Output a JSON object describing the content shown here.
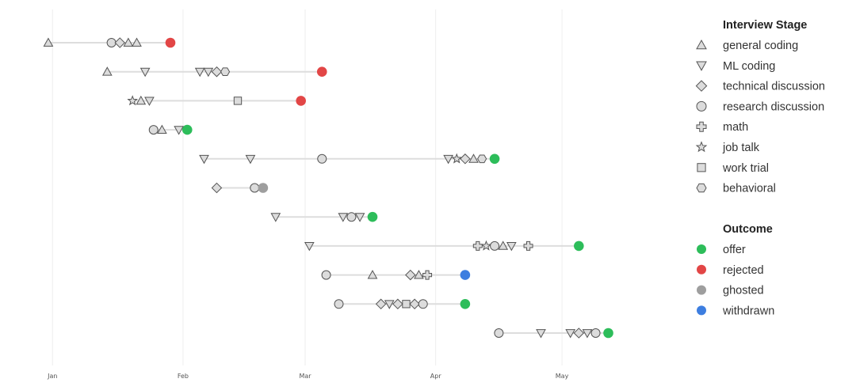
{
  "chart_data": {
    "type": "timeline",
    "x_axis": {
      "type": "date",
      "range": [
        "2023-12-28",
        "2024-05-20"
      ],
      "tick_labels": [
        "Jan",
        "Feb",
        "Mar",
        "Apr",
        "May"
      ],
      "tick_dates": [
        "2024-01-01",
        "2024-02-01",
        "2024-03-01",
        "2024-04-01",
        "2024-05-01"
      ],
      "grid": true
    },
    "legend_position": "right",
    "stage_legend": {
      "title": "Interview Stage",
      "items": [
        {
          "key": "general_coding",
          "label": "general coding",
          "marker": "triangle-up"
        },
        {
          "key": "ml_coding",
          "label": "ML coding",
          "marker": "triangle-down"
        },
        {
          "key": "technical_discussion",
          "label": "technical discussion",
          "marker": "diamond"
        },
        {
          "key": "research_discussion",
          "label": "research discussion",
          "marker": "circle"
        },
        {
          "key": "math",
          "label": "math",
          "marker": "plus"
        },
        {
          "key": "job_talk",
          "label": "job talk",
          "marker": "star"
        },
        {
          "key": "work_trial",
          "label": "work trial",
          "marker": "square"
        },
        {
          "key": "behavioral",
          "label": "behavioral",
          "marker": "hexagon"
        }
      ]
    },
    "outcome_legend": {
      "title": "Outcome",
      "items": [
        {
          "key": "offer",
          "label": "offer",
          "color": "#2dbd5a"
        },
        {
          "key": "rejected",
          "label": "rejected",
          "color": "#e24646"
        },
        {
          "key": "ghosted",
          "label": "ghosted",
          "color": "#9e9e9e"
        },
        {
          "key": "withdrawn",
          "label": "withdrawn",
          "color": "#3d7ee0"
        }
      ]
    },
    "colors": {
      "marker_fill": "#dcdcdc",
      "marker_stroke": "#555555",
      "line": "#dddddd",
      "grid": "#eeeeee"
    },
    "rows": [
      {
        "stages": [
          [
            "2023-12-31",
            "general_coding"
          ],
          [
            "2024-01-15",
            "research_discussion"
          ],
          [
            "2024-01-17",
            "technical_discussion"
          ],
          [
            "2024-01-19",
            "general_coding"
          ],
          [
            "2024-01-21",
            "general_coding"
          ]
        ],
        "outcome": [
          "2024-01-29",
          "rejected"
        ]
      },
      {
        "stages": [
          [
            "2024-01-14",
            "general_coding"
          ],
          [
            "2024-01-23",
            "ml_coding"
          ],
          [
            "2024-02-05",
            "ml_coding"
          ],
          [
            "2024-02-07",
            "ml_coding"
          ],
          [
            "2024-02-09",
            "technical_discussion"
          ],
          [
            "2024-02-11",
            "behavioral"
          ],
          [
            "2024-02-11",
            "circle_placeholder_skip"
          ]
        ],
        "outcome": [
          "2024-03-05",
          "rejected"
        ]
      },
      {
        "stages": [
          [
            "2024-01-20",
            "job_talk"
          ],
          [
            "2024-01-22",
            "general_coding"
          ],
          [
            "2024-01-24",
            "ml_coding"
          ],
          [
            "2024-02-14",
            "work_trial"
          ]
        ],
        "outcome": [
          "2024-02-29",
          "rejected"
        ]
      },
      {
        "stages": [
          [
            "2024-01-25",
            "research_discussion"
          ],
          [
            "2024-01-27",
            "general_coding"
          ],
          [
            "2024-01-31",
            "ml_coding"
          ]
        ],
        "outcome": [
          "2024-02-02",
          "offer"
        ]
      },
      {
        "stages": [
          [
            "2024-02-06",
            "ml_coding"
          ],
          [
            "2024-02-17",
            "ml_coding"
          ],
          [
            "2024-03-05",
            "research_discussion"
          ],
          [
            "2024-04-04",
            "ml_coding"
          ],
          [
            "2024-04-06",
            "job_talk"
          ],
          [
            "2024-04-08",
            "technical_discussion"
          ],
          [
            "2024-04-10",
            "general_coding"
          ],
          [
            "2024-04-12",
            "behavioral"
          ]
        ],
        "outcome": [
          "2024-04-15",
          "offer"
        ]
      },
      {
        "stages": [
          [
            "2024-02-09",
            "technical_discussion"
          ],
          [
            "2024-02-18",
            "research_discussion"
          ]
        ],
        "outcome": [
          "2024-02-20",
          "ghosted"
        ]
      },
      {
        "stages": [
          [
            "2024-02-23",
            "ml_coding"
          ],
          [
            "2024-03-10",
            "ml_coding"
          ],
          [
            "2024-03-12",
            "research_discussion"
          ],
          [
            "2024-03-14",
            "ml_coding"
          ]
        ],
        "outcome": [
          "2024-03-17",
          "offer"
        ]
      },
      {
        "stages": [
          [
            "2024-03-02",
            "ml_coding"
          ],
          [
            "2024-04-11",
            "math"
          ],
          [
            "2024-04-13",
            "job_talk"
          ],
          [
            "2024-04-15",
            "research_discussion"
          ],
          [
            "2024-04-17",
            "general_coding"
          ],
          [
            "2024-04-19",
            "ml_coding"
          ],
          [
            "2024-04-23",
            "math"
          ]
        ],
        "outcome": [
          "2024-05-05",
          "offer"
        ]
      },
      {
        "stages": [
          [
            "2024-03-06",
            "research_discussion"
          ],
          [
            "2024-03-17",
            "general_coding"
          ],
          [
            "2024-03-26",
            "technical_discussion"
          ],
          [
            "2024-03-28",
            "general_coding"
          ],
          [
            "2024-03-30",
            "math"
          ]
        ],
        "outcome": [
          "2024-04-08",
          "withdrawn"
        ]
      },
      {
        "stages": [
          [
            "2024-03-09",
            "research_discussion"
          ],
          [
            "2024-03-19",
            "technical_discussion"
          ],
          [
            "2024-03-21",
            "ml_coding"
          ],
          [
            "2024-03-23",
            "technical_discussion"
          ],
          [
            "2024-03-25",
            "work_trial"
          ],
          [
            "2024-03-27",
            "technical_discussion"
          ],
          [
            "2024-03-29",
            "research_discussion"
          ]
        ],
        "outcome": [
          "2024-04-08",
          "offer"
        ]
      },
      {
        "stages": [
          [
            "2024-04-16",
            "research_discussion"
          ],
          [
            "2024-04-26",
            "ml_coding"
          ],
          [
            "2024-05-03",
            "ml_coding"
          ],
          [
            "2024-05-05",
            "technical_discussion"
          ],
          [
            "2024-05-07",
            "ml_coding"
          ],
          [
            "2024-05-09",
            "research_discussion"
          ]
        ],
        "outcome": [
          "2024-05-12",
          "offer"
        ]
      }
    ]
  }
}
